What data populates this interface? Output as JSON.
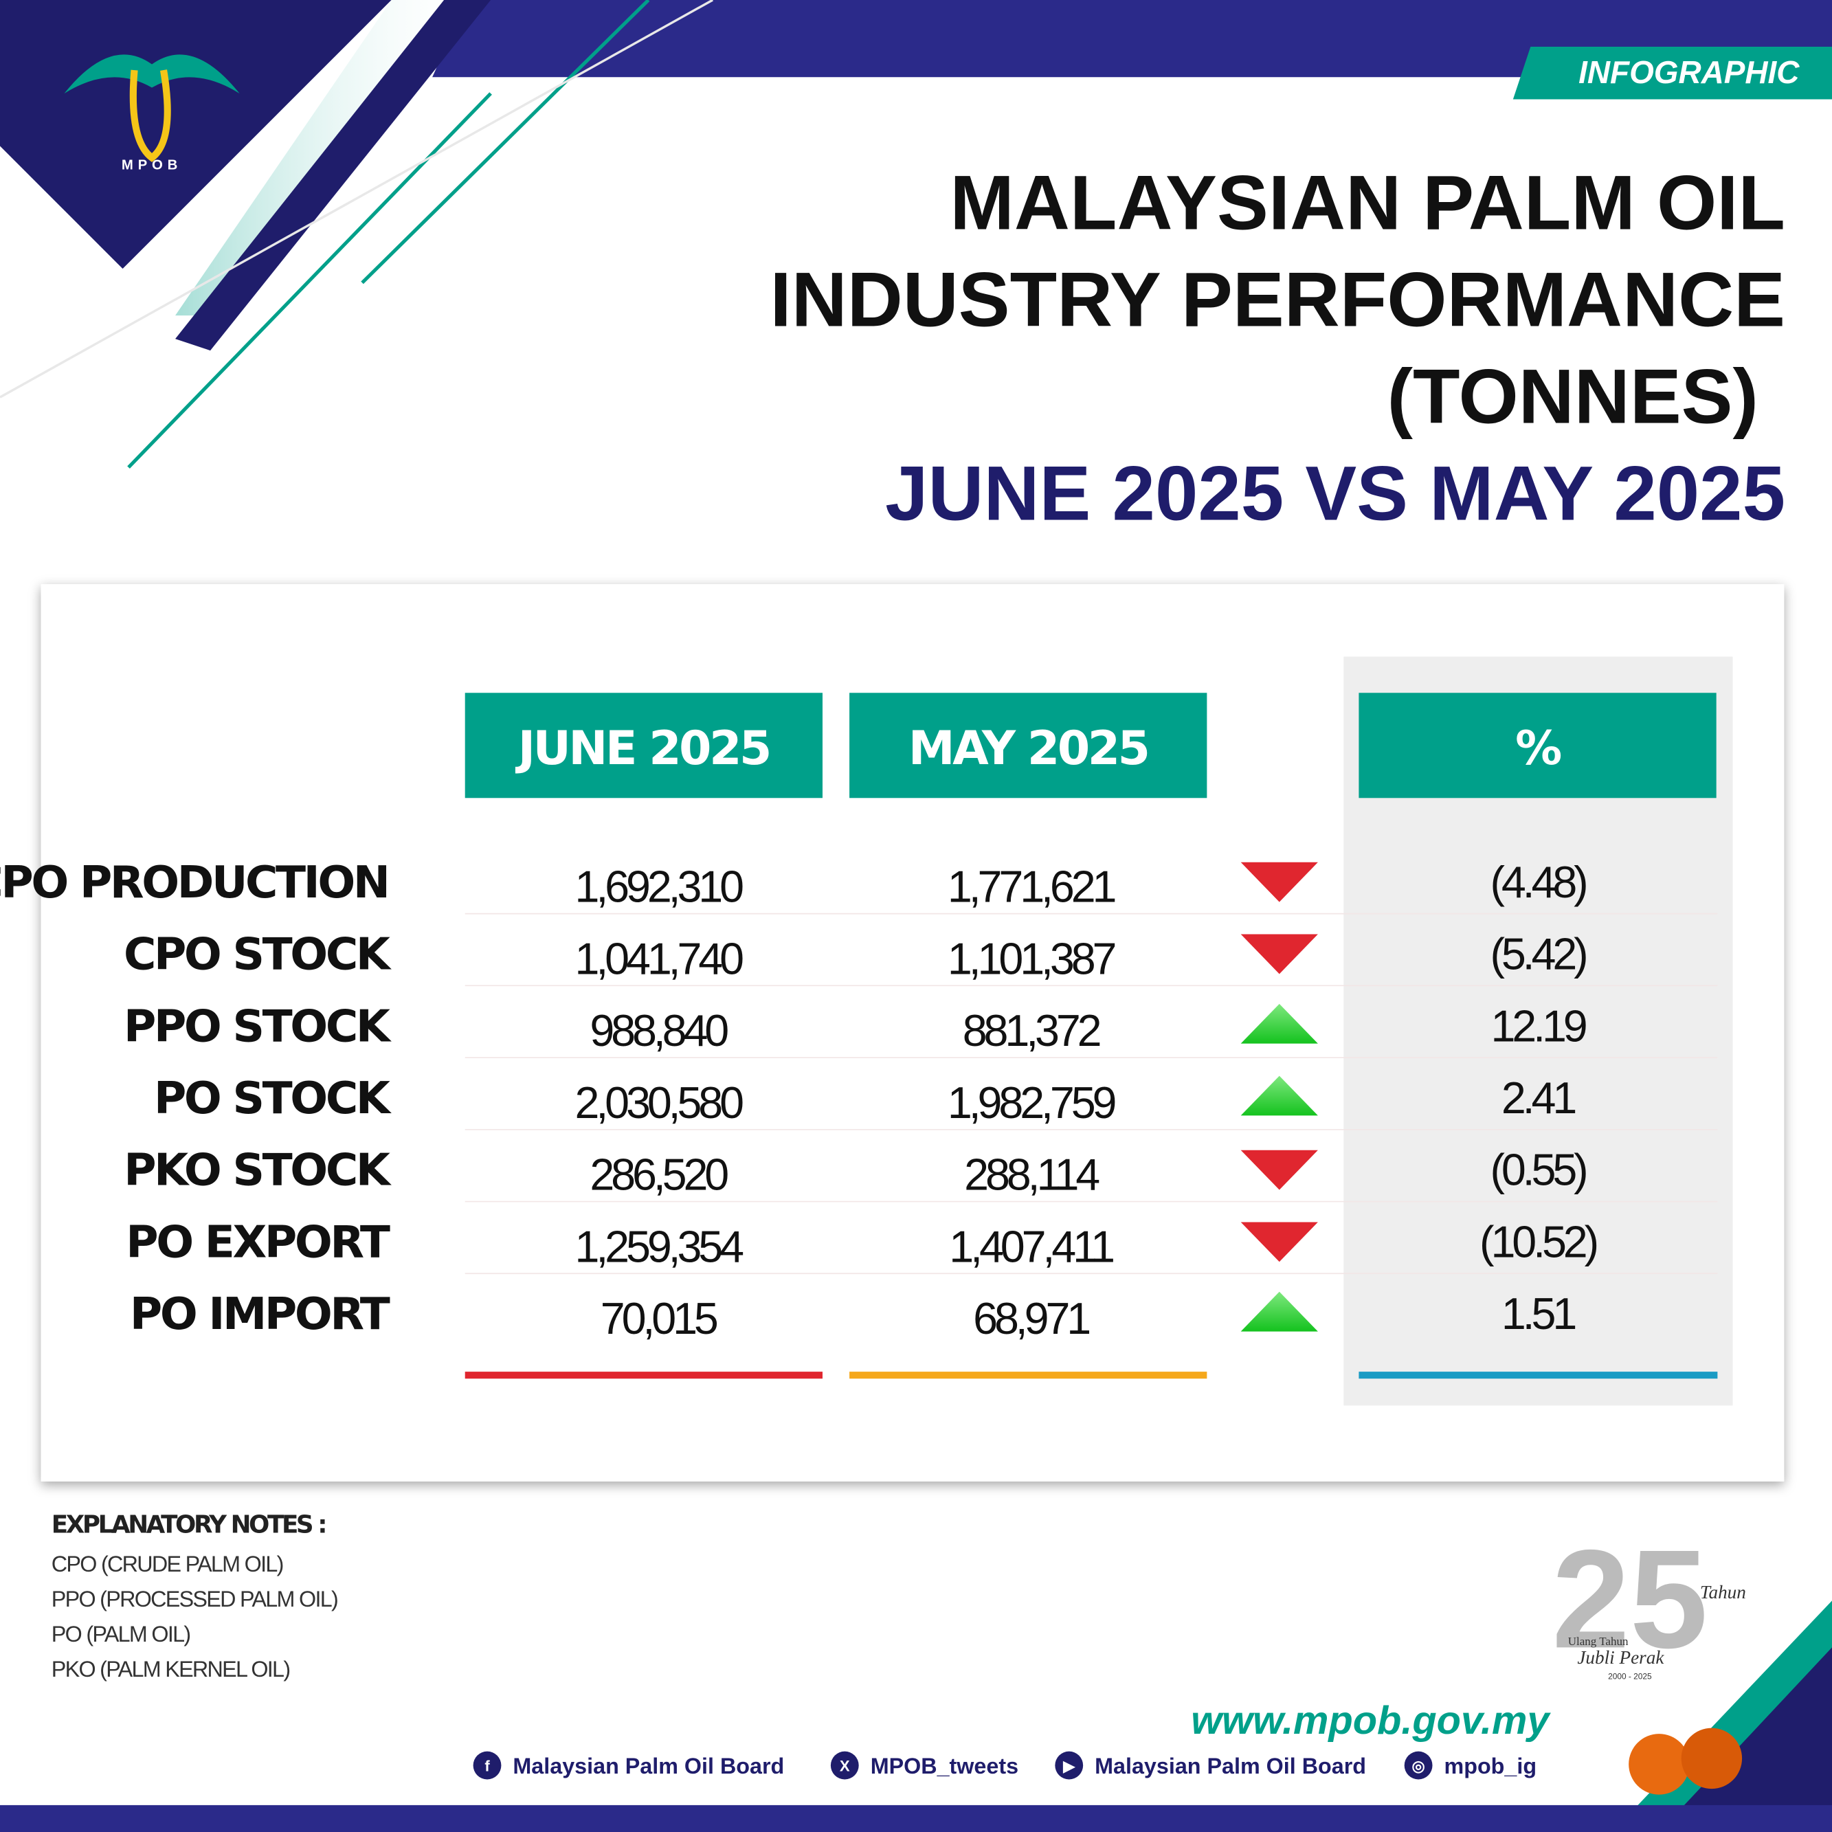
{
  "header": {
    "badge": "INFOGRAPHIC",
    "logo_text": "MPOB",
    "title_lines": [
      "MALAYSIAN PALM OIL",
      "INDUSTRY PERFORMANCE",
      "(TONNES)"
    ],
    "subtitle": "JUNE 2025 VS MAY 2025"
  },
  "table": {
    "columns": [
      "JUNE 2025",
      "MAY 2025",
      "%"
    ],
    "rows": [
      {
        "label": "CPO PRODUCTION",
        "june": "1,692,310",
        "may": "1,771,621",
        "trend": "down",
        "change": "(4.48)"
      },
      {
        "label": "CPO STOCK",
        "june": "1,041,740",
        "may": "1,101,387",
        "trend": "down",
        "change": "(5.42)"
      },
      {
        "label": "PPO STOCK",
        "june": "988,840",
        "may": "881,372",
        "trend": "up",
        "change": "12.19"
      },
      {
        "label": "PO STOCK",
        "june": "2,030,580",
        "may": "1,982,759",
        "trend": "up",
        "change": "2.41"
      },
      {
        "label": "PKO STOCK",
        "june": "286,520",
        "may": "288,114",
        "trend": "down",
        "change": "(0.55)"
      },
      {
        "label": "PO EXPORT",
        "june": "1,259,354",
        "may": "1,407,411",
        "trend": "down",
        "change": "(10.52)"
      },
      {
        "label": "PO IMPORT",
        "june": "70,015",
        "may": "68,971",
        "trend": "up",
        "change": "1.51"
      }
    ]
  },
  "notes": {
    "title": "EXPLANATORY NOTES :",
    "items": [
      "CPO (CRUDE PALM OIL)",
      "PPO (PROCESSED PALM OIL)",
      "PO (PALM OIL)",
      "PKO (PALM KERNEL OIL)"
    ]
  },
  "anniversary": {
    "tahun": "Tahun",
    "ulang": "Ulang Tahun",
    "jubli": "Jubli Perak",
    "years": "2000 - 2025"
  },
  "footer": {
    "website": "www.mpob.gov.my",
    "socials": [
      "Malaysian Palm Oil Board",
      "MPOB_tweets",
      "Malaysian Palm Oil Board",
      "mpob_ig"
    ]
  }
}
